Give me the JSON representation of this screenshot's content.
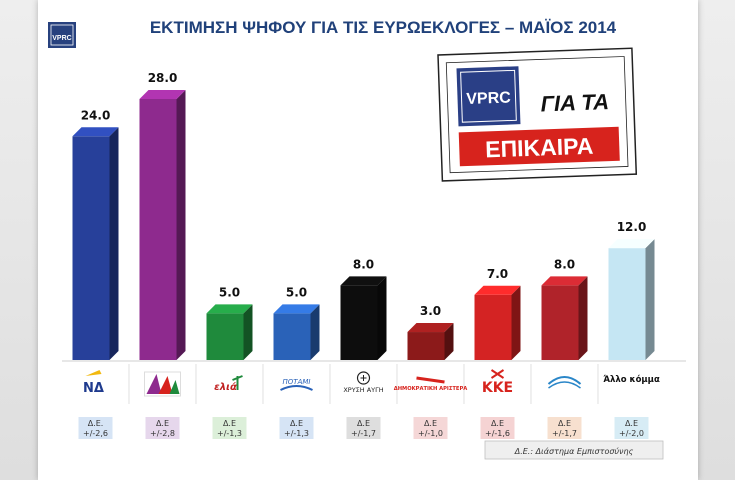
{
  "chart_data": {
    "type": "bar",
    "title": "ΕΚΤΙΜΗΣΗ ΨΗΦΟΥ ΓΙΑ ΤΙΣ ΕΥΡΩΕΚΛΟΓΕΣ – ΜΑΪΟΣ 2014",
    "ylim": [
      0,
      30
    ],
    "categories": [
      "ΝΔ",
      "ΣΥΡΙΖΑ",
      "Ελιά",
      "Ποτάμι",
      "ΧΡΥΣΗ ΑΥΓΗ",
      "ΔΗΜΟΚΡΑΤΙΚΗ ΑΡΙΣΤΕΡΑ",
      "ΚΚΕ",
      "ΑΝΕΛ",
      "Άλλο κόμμα"
    ],
    "values": [
      24.0,
      28.0,
      5.0,
      5.0,
      8.0,
      3.0,
      7.0,
      8.0,
      12.0
    ],
    "value_labels": [
      "24.0",
      "28.0",
      "5.0",
      "5.0",
      "8.0",
      "3.0",
      "7.0",
      "8.0",
      "12.0"
    ],
    "confidence_labels": [
      "Δ.Ε.",
      "Δ.Ε",
      "Δ.Ε",
      "Δ.Ε",
      "Δ.Ε",
      "Δ.Ε",
      "Δ.Ε",
      "Δ.Ε",
      "Δ.Ε"
    ],
    "confidence_intervals": [
      "+/-2,6",
      "+/-2,8",
      "+/-1,3",
      "+/-1,3",
      "+/-1,7",
      "+/-1,0",
      "+/-1,6",
      "+/-1,7",
      "+/-2,0"
    ],
    "bar_colors": [
      "#27409a",
      "#8e2a8e",
      "#1f8a3c",
      "#2a62b8",
      "#0d0d0d",
      "#8c1a1a",
      "#d42323",
      "#b0232a",
      "#c5e6f3"
    ],
    "ci_box_colors": [
      "#d6e4f5",
      "#e6d7ec",
      "#dcefd9",
      "#d6e4f5",
      "#dedede",
      "#f5d7d7",
      "#f5d3d3",
      "#f7e0cf",
      "#d7ecf5"
    ],
    "legend_note": "Δ.Ε.: Διάστημα Εμπιστοσύνης",
    "grid": false
  },
  "logos": {
    "corner": "VPRC",
    "stamp_brand": "VPRC",
    "stamp_line1": "ΓΙΑ ΤΑ",
    "stamp_line2": "ΕΠΙΚΑΙΡΑ",
    "party_texts": [
      "ΝΔ",
      "",
      "ελιά",
      "ΠΟΤΑΜΙ",
      "ΧΡΥΣΗ ΑΥΓΗ",
      "ΔΗΜΟΚΡΑΤΙΚΗ ΑΡΙΣΤΕΡΑ",
      "ΚΚΕ",
      "",
      "Άλλο κόμμα"
    ]
  }
}
